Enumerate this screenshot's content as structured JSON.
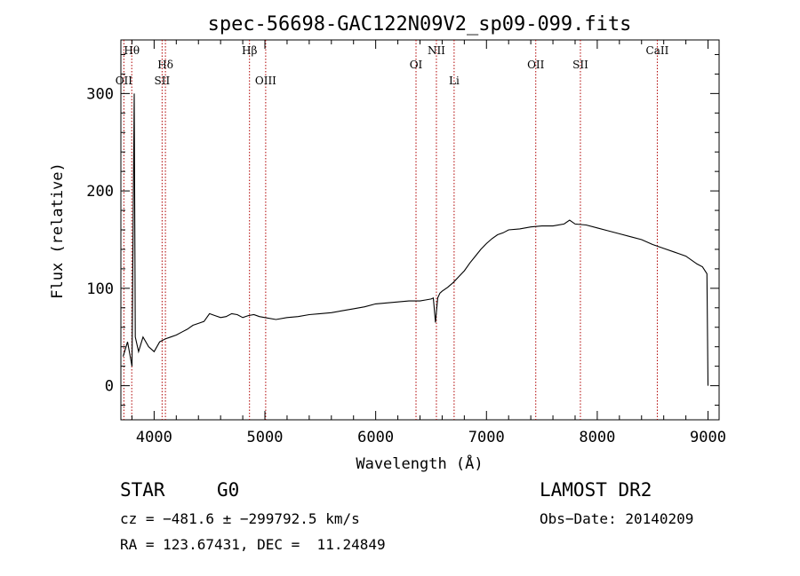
{
  "chart_data": {
    "type": "line",
    "title": "spec-56698-GAC122N09V2_sp09-099.fits",
    "xlabel": "Wavelength (Å)",
    "ylabel": "Flux (relative)",
    "xlim": [
      3700,
      9100
    ],
    "ylim": [
      -35,
      355
    ],
    "xticks": [
      "4000",
      "5000",
      "6000",
      "7000",
      "8000",
      "9000"
    ],
    "yticks": [
      "0",
      "100",
      "200",
      "300"
    ],
    "grid": false,
    "series": [
      {
        "x": [
          3720,
          3760,
          3800,
          3820,
          3830,
          3860,
          3900,
          3950,
          4000,
          4050,
          4100,
          4150,
          4200,
          4250,
          4300,
          4350,
          4400,
          4450,
          4500,
          4550,
          4600,
          4650,
          4700,
          4750,
          4800,
          4850,
          4900,
          4950,
          5000,
          5100,
          5200,
          5300,
          5400,
          5500,
          5600,
          5700,
          5800,
          5900,
          6000,
          6100,
          6200,
          6300,
          6400,
          6450,
          6500,
          6520,
          6540,
          6560,
          6580,
          6600,
          6650,
          6700,
          6750,
          6800,
          6850,
          6900,
          6950,
          7000,
          7050,
          7100,
          7150,
          7200,
          7300,
          7400,
          7500,
          7600,
          7700,
          7750,
          7800,
          7900,
          8000,
          8100,
          8200,
          8300,
          8400,
          8500,
          8600,
          8700,
          8800,
          8900,
          8950,
          8990,
          9000
        ],
        "y": [
          30,
          45,
          20,
          300,
          50,
          35,
          50,
          40,
          35,
          45,
          48,
          50,
          52,
          55,
          58,
          62,
          64,
          66,
          74,
          72,
          70,
          71,
          74,
          73,
          70,
          72,
          73,
          71,
          70,
          68,
          70,
          71,
          73,
          74,
          75,
          77,
          79,
          81,
          84,
          85,
          86,
          87,
          87,
          88,
          89,
          90,
          65,
          90,
          95,
          97,
          101,
          106,
          112,
          118,
          126,
          133,
          140,
          146,
          151,
          155,
          157,
          160,
          161,
          163,
          164,
          164,
          166,
          170,
          166,
          165,
          162,
          159,
          156,
          153,
          150,
          145,
          141,
          137,
          133,
          125,
          122,
          115,
          0
        ]
      }
    ],
    "annotations": [
      {
        "label": "Hθ",
        "x": 3798,
        "tier": 1
      },
      {
        "label": "OII",
        "x": 3727,
        "tier": 3
      },
      {
        "label": "Hδ",
        "x": 4102,
        "tier": 2
      },
      {
        "label": "SII",
        "x": 4072,
        "tier": 3
      },
      {
        "label": "Hβ",
        "x": 4861,
        "tier": 1
      },
      {
        "label": "OIII",
        "x": 5007,
        "tier": 3
      },
      {
        "label": "NII",
        "x": 6548,
        "tier": 1
      },
      {
        "label": "OI",
        "x": 6364,
        "tier": 2
      },
      {
        "label": "Li",
        "x": 6708,
        "tier": 3
      },
      {
        "label": "OII",
        "x": 7445,
        "tier": 2
      },
      {
        "label": "SII",
        "x": 7848,
        "tier": 2
      },
      {
        "label": "CaII",
        "x": 8542,
        "tier": 1
      }
    ]
  },
  "info": {
    "class_type": "STAR",
    "subclass": "G0",
    "survey": "LAMOST DR2",
    "cz": "cz = −481.6 ± −299792.5 km/s",
    "obs_date": "Obs−Date: 20140209",
    "radec": "RA = 123.67431, DEC =  11.24849"
  }
}
